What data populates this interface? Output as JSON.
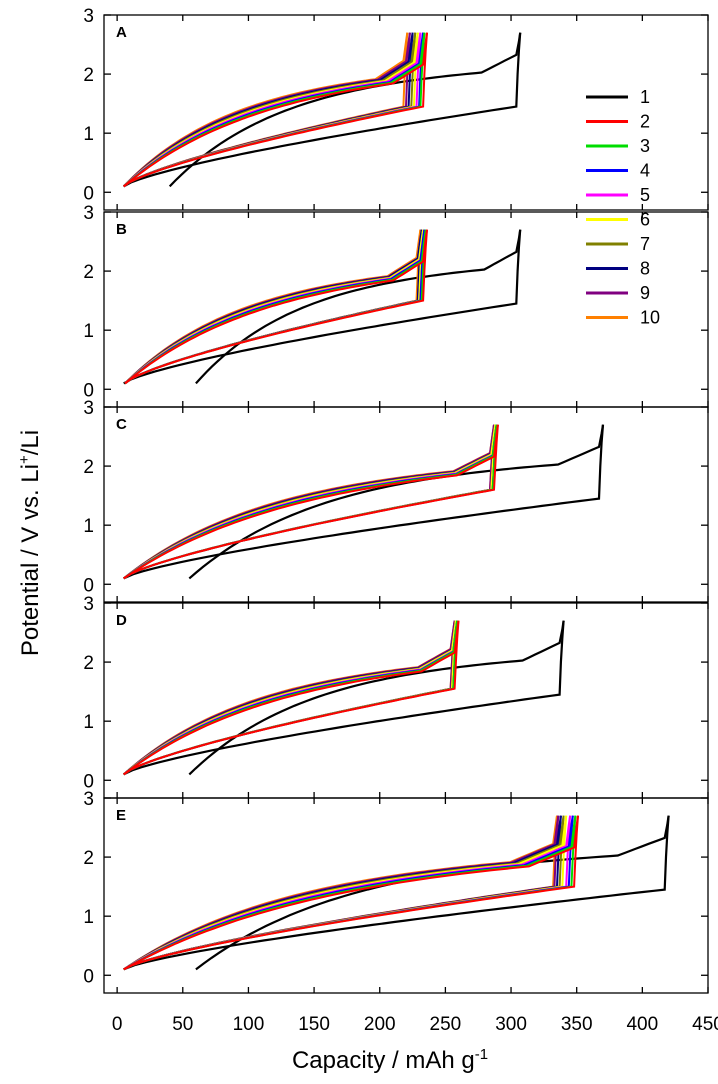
{
  "chart_data": {
    "type": "line",
    "xlabel": "Capacity / mAh g",
    "xlabel_sup": "-1",
    "ylabel": "Potential / V vs. Li",
    "ylabel_sup": "+",
    "ylabel_tail": "/Li",
    "xlim": [
      -10,
      450
    ],
    "ylim": [
      -0.3,
      3.0
    ],
    "x_ticks": [
      "0",
      "50",
      "100",
      "150",
      "200",
      "250",
      "300",
      "350",
      "400",
      "450"
    ],
    "y_ticks": [
      "0",
      "1",
      "2",
      "3"
    ],
    "legend": {
      "position": "top-right",
      "entries": [
        {
          "label": "1",
          "color": "#000000"
        },
        {
          "label": "2",
          "color": "#ff0000"
        },
        {
          "label": "3",
          "color": "#00dd00"
        },
        {
          "label": "4",
          "color": "#0000ff"
        },
        {
          "label": "5",
          "color": "#ff00ff"
        },
        {
          "label": "6",
          "color": "#ffff00"
        },
        {
          "label": "7",
          "color": "#808000"
        },
        {
          "label": "8",
          "color": "#000080"
        },
        {
          "label": "9",
          "color": "#800080"
        },
        {
          "label": "10",
          "color": "#ff8000"
        }
      ]
    },
    "panels": [
      {
        "letter": "A",
        "first_cycle": {
          "start": 40,
          "end": 307,
          "plateau": 2.1
        },
        "cycles_end": [
          238,
          236,
          234,
          233,
          231,
          229,
          227,
          225,
          223,
          221
        ],
        "discharge_end": 5,
        "discharge_knee": 1.45
      },
      {
        "letter": "B",
        "first_cycle": {
          "start": 60,
          "end": 307,
          "plateau": 2.1
        },
        "cycles_end": [
          238,
          236,
          235,
          234,
          234,
          233,
          233,
          232,
          232,
          231
        ],
        "discharge_end": 6,
        "discharge_knee": 1.5
      },
      {
        "letter": "C",
        "first_cycle": {
          "start": 55,
          "end": 370,
          "plateau": 2.1
        },
        "cycles_end": [
          290,
          290,
          289,
          289,
          289,
          288,
          288,
          288,
          287,
          287
        ],
        "discharge_end": 5,
        "discharge_knee": 1.6
      },
      {
        "letter": "D",
        "first_cycle": {
          "start": 55,
          "end": 340,
          "plateau": 2.1
        },
        "cycles_end": [
          260,
          260,
          259,
          259,
          259,
          258,
          258,
          258,
          257,
          257
        ],
        "discharge_end": 5,
        "discharge_knee": 1.55
      },
      {
        "letter": "E",
        "first_cycle": {
          "start": 60,
          "end": 420,
          "plateau": 2.1
        },
        "cycles_end": [
          353,
          351,
          349,
          347,
          345,
          342,
          340,
          338,
          336,
          335
        ],
        "discharge_end": 5,
        "discharge_knee": 1.5
      }
    ]
  }
}
